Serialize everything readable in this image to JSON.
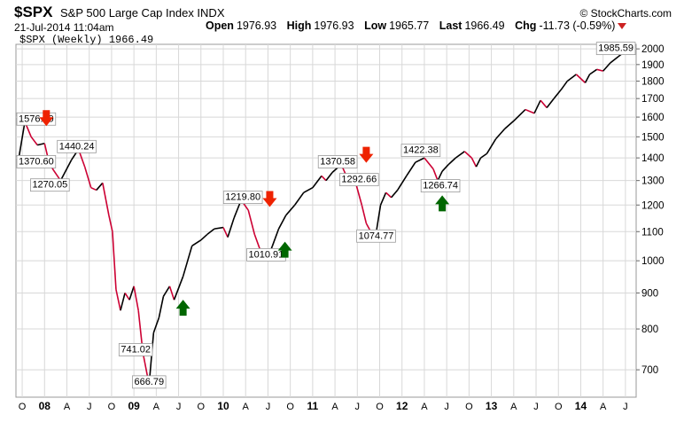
{
  "header": {
    "symbol": "$SPX",
    "name": "S&P 500 Large Cap Index INDX",
    "brand": "© StockCharts.com",
    "datetime": "21-Jul-2014 11:04am",
    "open_label": "Open",
    "open": "1976.93",
    "high_label": "High",
    "high": "1976.93",
    "low_label": "Low",
    "low": "1965.77",
    "last_label": "Last",
    "last": "1966.49",
    "chg_label": "Chg",
    "chg": "-11.73 (-0.59%)"
  },
  "legend": "$SPX (Weekly) 1966.49",
  "colors": {
    "up": "#000000",
    "down": "#cc0033",
    "arrow_down": "#ee2200",
    "arrow_up": "#006600",
    "grid": "#d8d8d8"
  },
  "chart_data": {
    "type": "line",
    "scale": "log",
    "ylim": [
      640,
      2030
    ],
    "xlim": [
      2007.68,
      2014.62
    ],
    "yticks": [
      700,
      800,
      900,
      1000,
      1100,
      1200,
      1300,
      1400,
      1500,
      1600,
      1700,
      1800,
      1900,
      2000
    ],
    "xticks": [
      {
        "x": 2007.75,
        "label": "O"
      },
      {
        "x": 2008.0,
        "label": "08"
      },
      {
        "x": 2008.25,
        "label": "A"
      },
      {
        "x": 2008.5,
        "label": "J"
      },
      {
        "x": 2008.75,
        "label": "O"
      },
      {
        "x": 2009.0,
        "label": "09"
      },
      {
        "x": 2009.25,
        "label": "A"
      },
      {
        "x": 2009.5,
        "label": "J"
      },
      {
        "x": 2009.75,
        "label": "O"
      },
      {
        "x": 2010.0,
        "label": "10"
      },
      {
        "x": 2010.25,
        "label": "A"
      },
      {
        "x": 2010.5,
        "label": "J"
      },
      {
        "x": 2010.75,
        "label": "O"
      },
      {
        "x": 2011.0,
        "label": "11"
      },
      {
        "x": 2011.25,
        "label": "A"
      },
      {
        "x": 2011.5,
        "label": "J"
      },
      {
        "x": 2011.75,
        "label": "O"
      },
      {
        "x": 2012.0,
        "label": "12"
      },
      {
        "x": 2012.25,
        "label": "A"
      },
      {
        "x": 2012.5,
        "label": "J"
      },
      {
        "x": 2012.75,
        "label": "O"
      },
      {
        "x": 2013.0,
        "label": "13"
      },
      {
        "x": 2013.25,
        "label": "A"
      },
      {
        "x": 2013.5,
        "label": "J"
      },
      {
        "x": 2013.75,
        "label": "O"
      },
      {
        "x": 2014.0,
        "label": "14"
      },
      {
        "x": 2014.25,
        "label": "A"
      },
      {
        "x": 2014.5,
        "label": "J"
      }
    ],
    "series": [
      {
        "x": [
          2007.7,
          2007.78,
          2007.85,
          2007.92,
          2008.0,
          2008.05,
          2008.1,
          2008.18,
          2008.3,
          2008.38,
          2008.45,
          2008.52,
          2008.58,
          2008.65,
          2008.72,
          2008.76,
          2008.8,
          2008.85,
          2008.9,
          2008.95,
          2009.0,
          2009.05,
          2009.1,
          2009.17,
          2009.22,
          2009.28,
          2009.33,
          2009.4,
          2009.45,
          2009.55,
          2009.65,
          2009.75,
          2009.82,
          2009.9,
          2010.0,
          2010.05,
          2010.12,
          2010.2,
          2010.28,
          2010.35,
          2010.42,
          2010.5,
          2010.55,
          2010.62,
          2010.7,
          2010.8,
          2010.9,
          2011.0,
          2011.1,
          2011.15,
          2011.22,
          2011.32,
          2011.4,
          2011.48,
          2011.55,
          2011.6,
          2011.65,
          2011.7,
          2011.76,
          2011.82,
          2011.88,
          2011.95,
          2012.05,
          2012.15,
          2012.25,
          2012.35,
          2012.4,
          2012.45,
          2012.52,
          2012.6,
          2012.7,
          2012.78,
          2012.83,
          2012.88,
          2012.95,
          2013.05,
          2013.15,
          2013.25,
          2013.38,
          2013.48,
          2013.55,
          2013.62,
          2013.7,
          2013.78,
          2013.85,
          2013.95,
          2014.05,
          2014.1,
          2014.18,
          2014.25,
          2014.33,
          2014.42,
          2014.5,
          2014.55
        ],
        "y": [
          1370.6,
          1576.09,
          1500,
          1460,
          1468,
          1380,
          1345,
          1300,
          1390,
          1440.24,
          1360,
          1270.05,
          1260,
          1290,
          1160,
          1100,
          910,
          850,
          900,
          880,
          920,
          850,
          741.02,
          666.79,
          790,
          830,
          890,
          920,
          880,
          950,
          1050,
          1070,
          1090,
          1110,
          1115,
          1080,
          1150,
          1219.8,
          1180,
          1090,
          1030,
          1010.91,
          1050,
          1110,
          1160,
          1200,
          1250,
          1270,
          1320,
          1300,
          1335,
          1370.58,
          1300,
          1292.66,
          1200,
          1130,
          1100,
          1074.77,
          1200,
          1250,
          1230,
          1260,
          1320,
          1380,
          1400,
          1350,
          1300,
          1340,
          1370,
          1400,
          1430,
          1400,
          1360,
          1400,
          1420,
          1490,
          1540,
          1580,
          1640,
          1620,
          1690,
          1650,
          1700,
          1750,
          1800,
          1840,
          1790,
          1840,
          1870,
          1860,
          1910,
          1950,
          1985.59,
          1966.49
        ]
      }
    ],
    "annotations": [
      {
        "x": 2007.74,
        "y": 1576.09,
        "label": "1576.09"
      },
      {
        "x": 2007.71,
        "y": 1370.6,
        "label": "1370.60"
      },
      {
        "x": 2008.36,
        "y": 1440.24,
        "label": "1440.24"
      },
      {
        "x": 2008.06,
        "y": 1270.05,
        "label": "1270.05"
      },
      {
        "x": 2009.02,
        "y": 741.02,
        "label": "741.02"
      },
      {
        "x": 2009.17,
        "y": 666.79,
        "label": "666.79"
      },
      {
        "x": 2010.22,
        "y": 1219.8,
        "label": "1219.80"
      },
      {
        "x": 2010.48,
        "y": 1010.91,
        "label": "1010.91"
      },
      {
        "x": 2011.28,
        "y": 1370.58,
        "label": "1370.58"
      },
      {
        "x": 2011.52,
        "y": 1292.66,
        "label": "1292.66"
      },
      {
        "x": 2011.71,
        "y": 1074.77,
        "label": "1074.77"
      },
      {
        "x": 2012.21,
        "y": 1422.38,
        "label": "1422.38"
      },
      {
        "x": 2012.43,
        "y": 1266.74,
        "label": "1266.74"
      },
      {
        "x": 2014.48,
        "y": 1985.59,
        "label": "1985.59"
      }
    ],
    "arrows": [
      {
        "x": 2008.02,
        "y": 1590,
        "dir": "down"
      },
      {
        "x": 2009.55,
        "y": 860,
        "dir": "up"
      },
      {
        "x": 2010.52,
        "y": 1220,
        "dir": "down"
      },
      {
        "x": 2010.69,
        "y": 1040,
        "dir": "up"
      },
      {
        "x": 2011.6,
        "y": 1410,
        "dir": "down"
      },
      {
        "x": 2012.45,
        "y": 1210,
        "dir": "up"
      }
    ]
  }
}
